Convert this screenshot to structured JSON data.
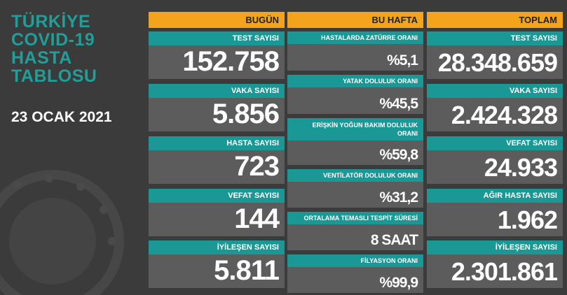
{
  "title_lines": [
    "TÜRKİYE",
    "COVID-19",
    "HASTA",
    "TABLOSU"
  ],
  "date": "23 OCAK 2021",
  "columns": [
    {
      "header": "BUGÜN",
      "cards": [
        {
          "label": "TEST SAYISI",
          "value": "152.758"
        },
        {
          "label": "VAKA SAYISI",
          "value": "5.856"
        },
        {
          "label": "HASTA SAYISI",
          "value": "723"
        },
        {
          "label": "VEFAT SAYISI",
          "value": "144"
        },
        {
          "label": "İYİLEŞEN SAYISI",
          "value": "5.811"
        }
      ]
    },
    {
      "header": "BU HAFTA",
      "cards": [
        {
          "label": "HASTALARDA ZATÜRRE ORANI",
          "value": "%5,1"
        },
        {
          "label": "YATAK DOLULUK ORANI",
          "value": "%45,5"
        },
        {
          "label": "ERİŞKİN YOĞUN BAKIM DOLULUK ORANI",
          "value": "%59,8"
        },
        {
          "label": "VENTİLATÖR DOLULUK ORANI",
          "value": "%31,2"
        },
        {
          "label": "ORTALAMA TEMASLI TESPİT SÜRESİ",
          "value": "8 SAAT"
        },
        {
          "label": "FİLYASYON ORANI",
          "value": "%99,9"
        }
      ]
    },
    {
      "header": "TOPLAM",
      "cards": [
        {
          "label": "TEST SAYISI",
          "value": "28.348.659"
        },
        {
          "label": "VAKA SAYISI",
          "value": "2.424.328"
        },
        {
          "label": "VEFAT SAYISI",
          "value": "24.933"
        },
        {
          "label": "AĞIR HASTA SAYISI",
          "value": "1.962"
        },
        {
          "label": "İYİLEŞEN SAYISI",
          "value": "2.301.861"
        }
      ]
    }
  ]
}
